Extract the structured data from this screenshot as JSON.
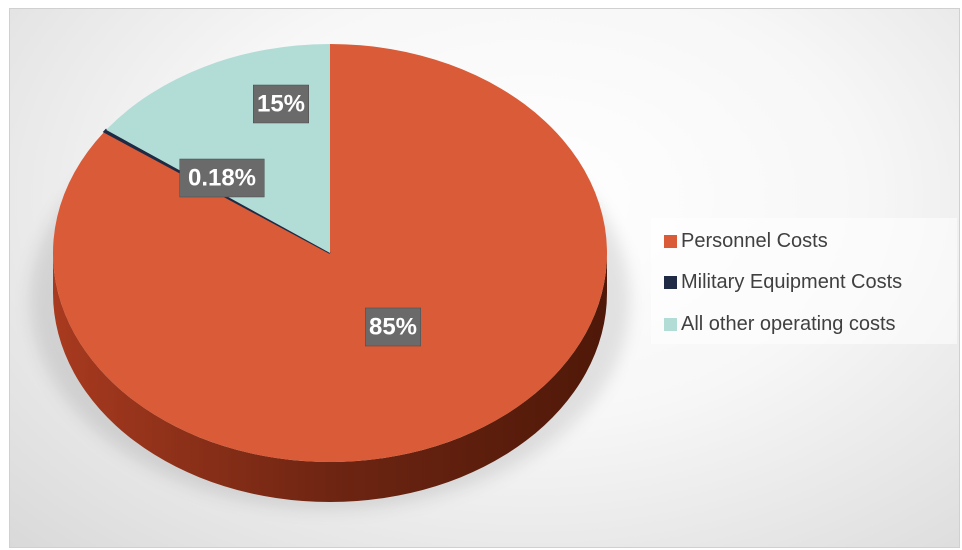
{
  "chart_data": {
    "type": "pie",
    "title": "",
    "categories": [
      "Personnel Costs",
      "Military Equipment Costs",
      "All other operating costs"
    ],
    "values": [
      85,
      0.18,
      15
    ],
    "value_labels": [
      "85%",
      "0.18%",
      "15%"
    ],
    "colors": [
      "#d95b38",
      "#1f2a44",
      "#b2ddd6"
    ],
    "legend_position": "right",
    "style": "3d"
  }
}
